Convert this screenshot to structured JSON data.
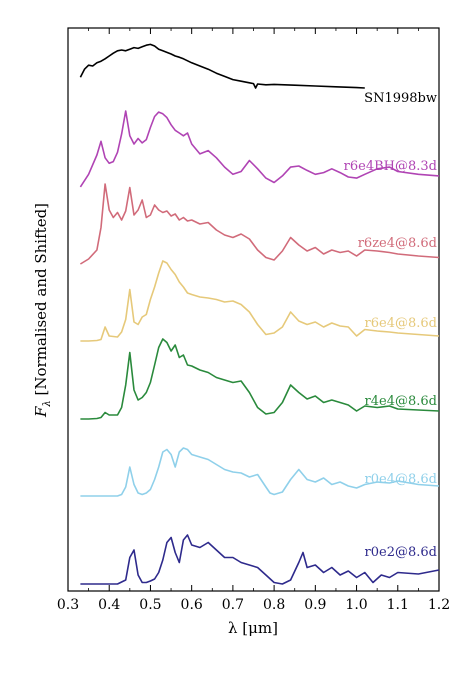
{
  "chart_data": {
    "type": "line",
    "xlabel": "λ [μm]",
    "ylabel": "F_λ [Normalised and Shifted]",
    "xlim": [
      0.3,
      1.2
    ],
    "x_ticks": [
      "0.3",
      "0.4",
      "0.5",
      "0.6",
      "0.7",
      "0.8",
      "0.9",
      "1.0",
      "1.1",
      "1.2"
    ],
    "y_ticks_labeled": false,
    "grid": false,
    "legend": "inline labels at right end of each spectrum",
    "series": [
      {
        "name": "SN1998bw",
        "color": "#000000",
        "x": [
          0.33,
          0.34,
          0.35,
          0.36,
          0.37,
          0.38,
          0.39,
          0.4,
          0.41,
          0.42,
          0.43,
          0.44,
          0.45,
          0.46,
          0.47,
          0.48,
          0.49,
          0.5,
          0.51,
          0.52,
          0.53,
          0.54,
          0.55,
          0.56,
          0.57,
          0.58,
          0.6,
          0.62,
          0.64,
          0.66,
          0.68,
          0.7,
          0.72,
          0.74,
          0.75,
          0.755,
          0.76,
          0.78,
          0.8,
          0.85,
          0.9,
          0.95,
          1.0,
          1.02
        ],
        "y": [
          0.52,
          0.72,
          0.82,
          0.8,
          0.88,
          0.92,
          0.98,
          1.05,
          1.12,
          1.18,
          1.2,
          1.18,
          1.22,
          1.26,
          1.24,
          1.28,
          1.32,
          1.34,
          1.3,
          1.22,
          1.18,
          1.14,
          1.1,
          1.05,
          1.02,
          0.98,
          0.88,
          0.8,
          0.72,
          0.62,
          0.54,
          0.46,
          0.42,
          0.38,
          0.36,
          0.25,
          0.35,
          0.33,
          0.34,
          0.32,
          0.3,
          0.28,
          0.26,
          0.25
        ]
      },
      {
        "name": "r6e4BH@8.3d",
        "color": "#b044b4",
        "x": [
          0.33,
          0.35,
          0.37,
          0.38,
          0.39,
          0.4,
          0.41,
          0.42,
          0.43,
          0.44,
          0.45,
          0.46,
          0.47,
          0.48,
          0.49,
          0.5,
          0.51,
          0.52,
          0.53,
          0.54,
          0.55,
          0.56,
          0.57,
          0.58,
          0.59,
          0.6,
          0.62,
          0.64,
          0.66,
          0.68,
          0.7,
          0.72,
          0.74,
          0.76,
          0.78,
          0.8,
          0.82,
          0.84,
          0.86,
          0.88,
          0.9,
          0.92,
          0.94,
          0.96,
          0.98,
          1.0,
          1.02,
          1.05,
          1.08,
          1.1,
          1.15,
          1.2
        ],
        "y": [
          0.02,
          0.25,
          0.6,
          0.85,
          0.55,
          0.45,
          0.48,
          0.65,
          0.98,
          1.4,
          0.95,
          0.8,
          0.9,
          0.82,
          0.88,
          1.1,
          1.3,
          1.38,
          1.35,
          1.28,
          1.15,
          1.05,
          1.0,
          0.95,
          1.0,
          0.8,
          0.62,
          0.68,
          0.55,
          0.38,
          0.25,
          0.3,
          0.5,
          0.35,
          0.18,
          0.1,
          0.22,
          0.38,
          0.4,
          0.32,
          0.25,
          0.28,
          0.35,
          0.28,
          0.2,
          0.18,
          0.25,
          0.35,
          0.38,
          0.3,
          0.25,
          0.22
        ]
      },
      {
        "name": "r6ze4@8.6d",
        "color": "#d16b7a",
        "x": [
          0.33,
          0.35,
          0.37,
          0.38,
          0.39,
          0.4,
          0.41,
          0.42,
          0.43,
          0.44,
          0.45,
          0.46,
          0.47,
          0.48,
          0.49,
          0.5,
          0.51,
          0.52,
          0.53,
          0.54,
          0.55,
          0.56,
          0.57,
          0.58,
          0.59,
          0.6,
          0.62,
          0.64,
          0.66,
          0.68,
          0.7,
          0.72,
          0.74,
          0.76,
          0.78,
          0.8,
          0.82,
          0.84,
          0.86,
          0.88,
          0.9,
          0.92,
          0.94,
          0.96,
          0.98,
          1.0,
          1.02,
          1.05,
          1.08,
          1.1,
          1.15,
          1.2
        ],
        "y": [
          0.02,
          0.12,
          0.3,
          0.75,
          1.62,
          1.1,
          0.95,
          1.05,
          0.9,
          1.08,
          1.55,
          1.0,
          1.1,
          1.3,
          0.95,
          1.0,
          1.2,
          1.1,
          1.05,
          1.08,
          0.98,
          1.02,
          0.9,
          0.95,
          0.88,
          0.9,
          0.82,
          0.85,
          0.7,
          0.6,
          0.55,
          0.62,
          0.52,
          0.3,
          0.15,
          0.1,
          0.28,
          0.55,
          0.4,
          0.28,
          0.35,
          0.22,
          0.3,
          0.25,
          0.28,
          0.18,
          0.3,
          0.28,
          0.25,
          0.22,
          0.18,
          0.15
        ]
      },
      {
        "name": "r6e4@8.6d",
        "color": "#e6c97a",
        "x": [
          0.33,
          0.35,
          0.37,
          0.38,
          0.39,
          0.4,
          0.42,
          0.43,
          0.44,
          0.45,
          0.46,
          0.47,
          0.48,
          0.49,
          0.5,
          0.51,
          0.52,
          0.53,
          0.54,
          0.55,
          0.56,
          0.57,
          0.58,
          0.59,
          0.6,
          0.62,
          0.64,
          0.66,
          0.68,
          0.7,
          0.72,
          0.74,
          0.76,
          0.78,
          0.8,
          0.82,
          0.84,
          0.86,
          0.88,
          0.9,
          0.92,
          0.94,
          0.96,
          0.98,
          1.0,
          1.02,
          1.05,
          1.08,
          1.1,
          1.15,
          1.2
        ],
        "y": [
          0.02,
          0.02,
          0.03,
          0.05,
          0.3,
          0.12,
          0.1,
          0.2,
          0.45,
          1.05,
          0.4,
          0.35,
          0.5,
          0.55,
          0.85,
          1.1,
          1.38,
          1.62,
          1.58,
          1.45,
          1.35,
          1.2,
          1.1,
          0.98,
          0.95,
          0.9,
          0.88,
          0.85,
          0.8,
          0.82,
          0.75,
          0.6,
          0.35,
          0.15,
          0.18,
          0.3,
          0.6,
          0.42,
          0.35,
          0.4,
          0.3,
          0.38,
          0.32,
          0.3,
          0.12,
          0.25,
          0.22,
          0.2,
          0.18,
          0.15,
          0.12
        ]
      },
      {
        "name": "r4e4@8.6d",
        "color": "#2a8a3c",
        "x": [
          0.33,
          0.35,
          0.37,
          0.38,
          0.39,
          0.4,
          0.42,
          0.43,
          0.44,
          0.45,
          0.46,
          0.47,
          0.48,
          0.49,
          0.5,
          0.51,
          0.52,
          0.53,
          0.54,
          0.55,
          0.56,
          0.57,
          0.58,
          0.59,
          0.6,
          0.62,
          0.64,
          0.66,
          0.68,
          0.7,
          0.72,
          0.74,
          0.76,
          0.78,
          0.8,
          0.82,
          0.84,
          0.86,
          0.88,
          0.9,
          0.92,
          0.94,
          0.96,
          0.98,
          1.0,
          1.02,
          1.05,
          1.08,
          1.1,
          1.15,
          1.2
        ],
        "y": [
          0.02,
          0.02,
          0.03,
          0.05,
          0.15,
          0.1,
          0.1,
          0.25,
          0.7,
          1.35,
          0.6,
          0.4,
          0.45,
          0.55,
          0.75,
          1.1,
          1.45,
          1.62,
          1.55,
          1.38,
          1.5,
          1.25,
          1.3,
          1.1,
          1.08,
          1.0,
          0.95,
          0.85,
          0.8,
          0.75,
          0.78,
          0.55,
          0.25,
          0.12,
          0.15,
          0.35,
          0.7,
          0.55,
          0.42,
          0.48,
          0.35,
          0.4,
          0.35,
          0.3,
          0.18,
          0.28,
          0.25,
          0.28,
          0.22,
          0.2,
          0.18
        ]
      },
      {
        "name": "r0e4@8.6d",
        "color": "#8fd0ea",
        "x": [
          0.33,
          0.35,
          0.37,
          0.38,
          0.4,
          0.42,
          0.43,
          0.44,
          0.45,
          0.46,
          0.47,
          0.48,
          0.49,
          0.5,
          0.51,
          0.52,
          0.53,
          0.54,
          0.55,
          0.56,
          0.57,
          0.58,
          0.59,
          0.6,
          0.62,
          0.64,
          0.66,
          0.68,
          0.7,
          0.72,
          0.74,
          0.76,
          0.78,
          0.79,
          0.8,
          0.82,
          0.84,
          0.86,
          0.88,
          0.9,
          0.92,
          0.94,
          0.96,
          0.98,
          1.0,
          1.02,
          1.05,
          1.08,
          1.1,
          1.15,
          1.2
        ],
        "y": [
          0.02,
          0.02,
          0.02,
          0.02,
          0.02,
          0.02,
          0.05,
          0.2,
          0.6,
          0.25,
          0.08,
          0.05,
          0.08,
          0.15,
          0.35,
          0.6,
          0.9,
          0.95,
          0.85,
          0.6,
          0.9,
          0.98,
          0.95,
          0.85,
          0.8,
          0.75,
          0.65,
          0.55,
          0.5,
          0.48,
          0.4,
          0.45,
          0.2,
          0.08,
          0.05,
          0.1,
          0.35,
          0.55,
          0.35,
          0.3,
          0.38,
          0.25,
          0.3,
          0.22,
          0.18,
          0.25,
          0.3,
          0.28,
          0.32,
          0.25,
          0.22
        ]
      },
      {
        "name": "r0e2@8.6d",
        "color": "#2e2a8c",
        "x": [
          0.33,
          0.35,
          0.37,
          0.4,
          0.42,
          0.44,
          0.45,
          0.46,
          0.47,
          0.48,
          0.49,
          0.5,
          0.51,
          0.52,
          0.53,
          0.54,
          0.55,
          0.56,
          0.57,
          0.58,
          0.59,
          0.6,
          0.62,
          0.64,
          0.66,
          0.68,
          0.7,
          0.72,
          0.74,
          0.76,
          0.78,
          0.8,
          0.82,
          0.84,
          0.86,
          0.87,
          0.88,
          0.9,
          0.92,
          0.94,
          0.96,
          0.98,
          1.0,
          1.02,
          1.04,
          1.06,
          1.08,
          1.1,
          1.15,
          1.2
        ],
        "y": [
          0.02,
          0.02,
          0.02,
          0.02,
          0.02,
          0.1,
          0.55,
          0.7,
          0.2,
          0.05,
          0.05,
          0.08,
          0.12,
          0.25,
          0.5,
          0.85,
          0.95,
          0.65,
          0.45,
          0.9,
          1.0,
          0.8,
          0.75,
          0.85,
          0.7,
          0.55,
          0.55,
          0.45,
          0.4,
          0.35,
          0.2,
          0.05,
          0.02,
          0.1,
          0.45,
          0.65,
          0.35,
          0.4,
          0.25,
          0.35,
          0.2,
          0.28,
          0.15,
          0.25,
          0.05,
          0.2,
          0.15,
          0.25,
          0.22,
          0.3
        ]
      }
    ]
  }
}
